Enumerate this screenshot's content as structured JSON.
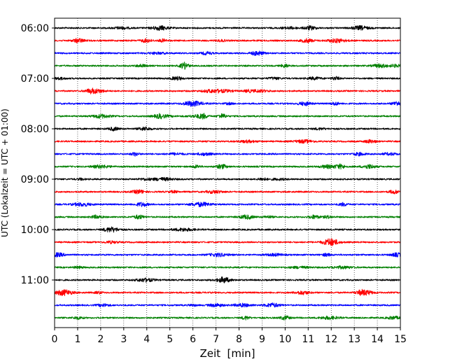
{
  "chart_data": {
    "type": "line",
    "title": "",
    "xlabel": "Zeit  [min]",
    "ylabel": "UTC (Lokalzeit = UTC + 01:00)",
    "xlim": [
      0,
      15
    ],
    "x_ticks": [
      "0",
      "1",
      "2",
      "3",
      "4",
      "5",
      "6",
      "7",
      "8",
      "9",
      "10",
      "11",
      "12",
      "13",
      "14",
      "15"
    ],
    "y_ticks": [
      {
        "label": "06:00",
        "trace_index": 0
      },
      {
        "label": "07:00",
        "trace_index": 4
      },
      {
        "label": "08:00",
        "trace_index": 8
      },
      {
        "label": "09:00",
        "trace_index": 12
      },
      {
        "label": "10:00",
        "trace_index": 16
      },
      {
        "label": "11:00",
        "trace_index": 20
      }
    ],
    "trace_interval_minutes": 15,
    "trace_colors": [
      "#000000",
      "#ff0000",
      "#0000ff",
      "#008000"
    ],
    "traces": [
      {
        "start": "06:00",
        "color": "#000000"
      },
      {
        "start": "06:15",
        "color": "#ff0000"
      },
      {
        "start": "06:30",
        "color": "#0000ff"
      },
      {
        "start": "06:45",
        "color": "#008000"
      },
      {
        "start": "07:00",
        "color": "#000000"
      },
      {
        "start": "07:15",
        "color": "#ff0000"
      },
      {
        "start": "07:30",
        "color": "#0000ff"
      },
      {
        "start": "07:45",
        "color": "#008000"
      },
      {
        "start": "08:00",
        "color": "#000000"
      },
      {
        "start": "08:15",
        "color": "#ff0000"
      },
      {
        "start": "08:30",
        "color": "#0000ff"
      },
      {
        "start": "08:45",
        "color": "#008000"
      },
      {
        "start": "09:00",
        "color": "#000000"
      },
      {
        "start": "09:15",
        "color": "#ff0000"
      },
      {
        "start": "09:30",
        "color": "#0000ff"
      },
      {
        "start": "09:45",
        "color": "#008000"
      },
      {
        "start": "10:00",
        "color": "#000000"
      },
      {
        "start": "10:15",
        "color": "#ff0000"
      },
      {
        "start": "10:30",
        "color": "#0000ff"
      },
      {
        "start": "10:45",
        "color": "#008000"
      },
      {
        "start": "11:00",
        "color": "#000000"
      },
      {
        "start": "11:15",
        "color": "#ff0000"
      },
      {
        "start": "11:30",
        "color": "#0000ff"
      },
      {
        "start": "11:45",
        "color": "#008000"
      }
    ],
    "vertical_grid": true,
    "grid_style": "dotted",
    "legend": "none"
  }
}
